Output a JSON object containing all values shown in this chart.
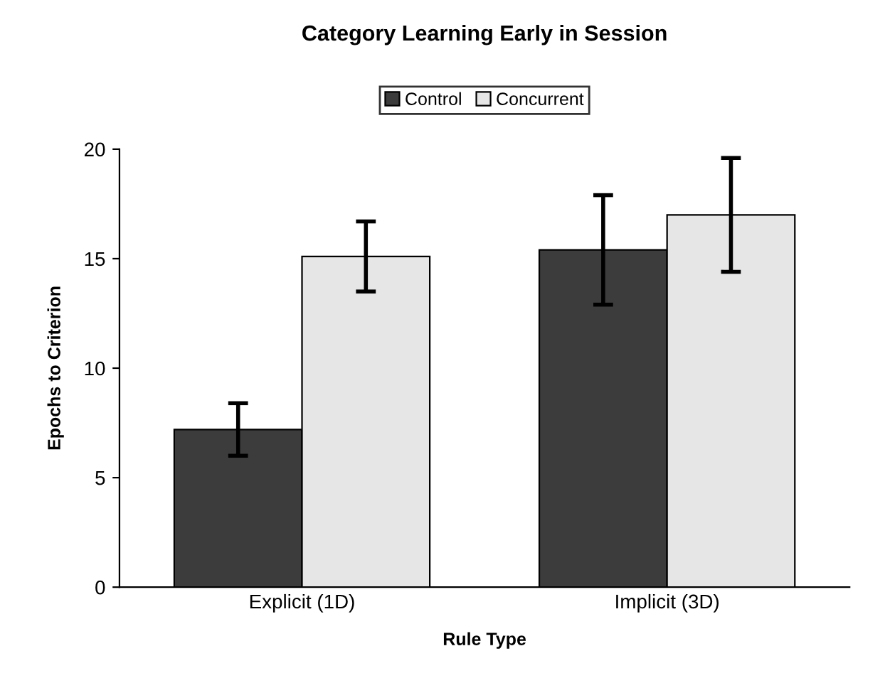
{
  "chart_data": {
    "type": "bar",
    "title": "Category Learning Early in Session",
    "xlabel": "Rule Type",
    "ylabel": "Epochs to Criterion",
    "categories": [
      "Explicit (1D)",
      "Implicit (3D)"
    ],
    "series": [
      {
        "name": "Control",
        "color": "#3c3c3c",
        "values": [
          7.2,
          15.4
        ],
        "errors": [
          1.2,
          2.5
        ]
      },
      {
        "name": "Concurrent",
        "color": "#e6e6e6",
        "values": [
          15.1,
          17.0
        ],
        "errors": [
          1.6,
          2.6
        ]
      }
    ],
    "ylim": [
      0,
      20
    ],
    "yticks": [
      0,
      5,
      10,
      15,
      20
    ],
    "grid": false,
    "legend": "top"
  }
}
